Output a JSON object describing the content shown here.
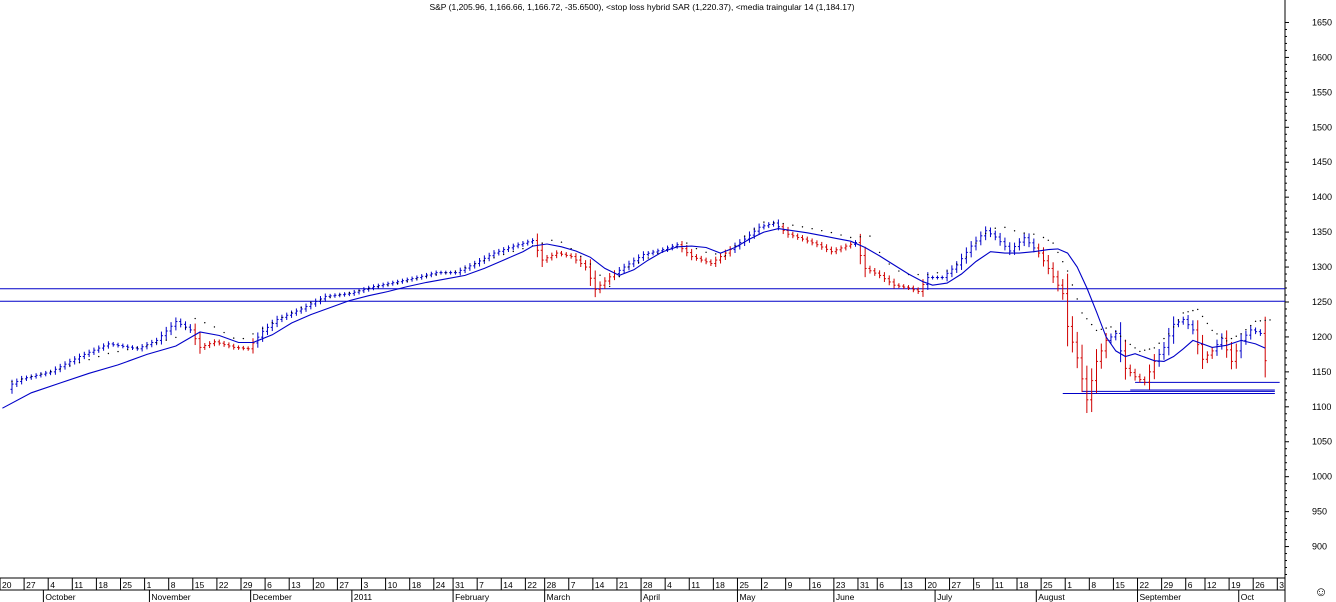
{
  "chart_data": {
    "type": "bar",
    "title": "S&P (1,205.96, 1,166.66, 1,166.72, -35.6500), <stop loss hybrid SAR (1,220.37), <media traingular 14 (1,184.17)",
    "y_axis": {
      "ylim": [
        855,
        1665
      ],
      "ticks": [
        1650,
        1600,
        1550,
        1500,
        1450,
        1400,
        1350,
        1300,
        1250,
        1200,
        1150,
        1100,
        1050,
        1000,
        950,
        900
      ],
      "tick_labels": [
        "1650",
        "1600",
        "1550",
        "1500",
        "1450",
        "1400",
        "1350",
        "1300",
        "1250",
        "1200",
        "1150",
        "1100",
        "1050",
        "1000",
        "950",
        "900"
      ],
      "position": "right"
    },
    "x_axis": {
      "day_labels": [
        "20",
        "27",
        "4",
        "11",
        "18",
        "25",
        "1",
        "8",
        "15",
        "22",
        "29",
        "6",
        "13",
        "20",
        "27",
        "3",
        "10",
        "18",
        "24",
        "31",
        "7",
        "14",
        "22",
        "28",
        "7",
        "14",
        "21",
        "28",
        "4",
        "11",
        "18",
        "25",
        "2",
        "9",
        "16",
        "23",
        "31",
        "6",
        "13",
        "20",
        "27",
        "5",
        "11",
        "18",
        "25",
        "1",
        "8",
        "15",
        "22",
        "29",
        "6",
        "12",
        "19",
        "26",
        "3"
      ],
      "day_index": [
        0,
        5,
        10,
        15,
        20,
        25,
        30,
        35,
        40,
        45,
        50,
        55,
        60,
        65,
        70,
        75,
        80,
        85,
        90,
        94,
        99,
        104,
        109,
        113,
        118,
        123,
        128,
        133,
        138,
        143,
        148,
        153,
        158,
        163,
        168,
        173,
        178,
        182,
        187,
        192,
        197,
        202,
        206,
        211,
        216,
        221,
        226,
        231,
        236,
        241,
        246,
        250,
        255,
        260,
        265
      ],
      "month_labels": [
        "October",
        "November",
        "December",
        "2011",
        "February",
        "March",
        "April",
        "May",
        "June",
        "July",
        "August",
        "September",
        "Oct"
      ],
      "month_index": [
        9,
        31,
        52,
        73,
        94,
        113,
        133,
        153,
        173,
        194,
        215,
        236,
        257
      ],
      "start_index": -2,
      "end_index": 268
    },
    "horizontal_lines": [
      1269,
      1251
    ],
    "support_lines": [
      {
        "x_start": 218,
        "x_end": 262,
        "y": 1119
      },
      {
        "x_start": 222,
        "x_end": 262,
        "y": 1122
      },
      {
        "x_start": 233,
        "x_end": 263,
        "y": 1135
      },
      {
        "x_start": 232,
        "x_end": 262,
        "y": 1124
      }
    ],
    "series": [
      {
        "name": "S&P",
        "kind": "ohlc_close",
        "points": [
          [
            -2,
            1125
          ],
          [
            2,
            1140
          ],
          [
            8,
            1150
          ],
          [
            14,
            1172
          ],
          [
            20,
            1190
          ],
          [
            26,
            1183
          ],
          [
            30,
            1195
          ],
          [
            34,
            1222
          ],
          [
            37,
            1210
          ],
          [
            39,
            1185
          ],
          [
            42,
            1193
          ],
          [
            46,
            1185
          ],
          [
            49,
            1183
          ],
          [
            52,
            1208
          ],
          [
            55,
            1225
          ],
          [
            60,
            1240
          ],
          [
            65,
            1258
          ],
          [
            70,
            1262
          ],
          [
            75,
            1272
          ],
          [
            80,
            1279
          ],
          [
            84,
            1285
          ],
          [
            88,
            1292
          ],
          [
            92,
            1292
          ],
          [
            96,
            1305
          ],
          [
            100,
            1320
          ],
          [
            104,
            1330
          ],
          [
            108,
            1338
          ],
          [
            110,
            1310
          ],
          [
            113,
            1320
          ],
          [
            116,
            1315
          ],
          [
            119,
            1300
          ],
          [
            121,
            1268
          ],
          [
            124,
            1286
          ],
          [
            127,
            1300
          ],
          [
            131,
            1318
          ],
          [
            135,
            1325
          ],
          [
            138,
            1332
          ],
          [
            141,
            1315
          ],
          [
            145,
            1305
          ],
          [
            148,
            1320
          ],
          [
            152,
            1340
          ],
          [
            155,
            1357
          ],
          [
            158,
            1363
          ],
          [
            161,
            1347
          ],
          [
            164,
            1340
          ],
          [
            167,
            1332
          ],
          [
            170,
            1322
          ],
          [
            173,
            1330
          ],
          [
            175,
            1335
          ],
          [
            177,
            1298
          ],
          [
            180,
            1288
          ],
          [
            183,
            1274
          ],
          [
            186,
            1270
          ],
          [
            188,
            1265
          ],
          [
            190,
            1285
          ],
          [
            193,
            1285
          ],
          [
            196,
            1303
          ],
          [
            199,
            1330
          ],
          [
            202,
            1352
          ],
          [
            204,
            1343
          ],
          [
            207,
            1323
          ],
          [
            210,
            1342
          ],
          [
            213,
            1320
          ],
          [
            215,
            1298
          ],
          [
            218,
            1262
          ],
          [
            219,
            1215
          ],
          [
            221,
            1170
          ],
          [
            223,
            1110
          ],
          [
            225,
            1165
          ],
          [
            227,
            1195
          ],
          [
            229,
            1205
          ],
          [
            231,
            1155
          ],
          [
            233,
            1143
          ],
          [
            235,
            1135
          ],
          [
            237,
            1165
          ],
          [
            239,
            1185
          ],
          [
            241,
            1218
          ],
          [
            243,
            1225
          ],
          [
            245,
            1210
          ],
          [
            247,
            1168
          ],
          [
            249,
            1180
          ],
          [
            251,
            1198
          ],
          [
            253,
            1165
          ],
          [
            255,
            1195
          ],
          [
            257,
            1210
          ],
          [
            259,
            1205
          ],
          [
            260,
            1166
          ]
        ]
      },
      {
        "name": "stop loss hybrid SAR",
        "kind": "dots",
        "points": [
          [
            -2,
            1128
          ],
          [
            10,
            1150
          ],
          [
            20,
            1172
          ],
          [
            28,
            1183
          ],
          [
            34,
            1195
          ],
          [
            38,
            1222
          ],
          [
            42,
            1210
          ],
          [
            47,
            1190
          ],
          [
            50,
            1200
          ],
          [
            55,
            1220
          ],
          [
            62,
            1245
          ],
          [
            68,
            1256
          ],
          [
            74,
            1265
          ],
          [
            80,
            1272
          ],
          [
            86,
            1282
          ],
          [
            92,
            1290
          ],
          [
            98,
            1305
          ],
          [
            104,
            1318
          ],
          [
            110,
            1330
          ],
          [
            113,
            1336
          ],
          [
            116,
            1322
          ],
          [
            120,
            1300
          ],
          [
            124,
            1268
          ],
          [
            128,
            1296
          ],
          [
            134,
            1315
          ],
          [
            138,
            1325
          ],
          [
            140,
            1330
          ],
          [
            143,
            1318
          ],
          [
            148,
            1312
          ],
          [
            152,
            1340
          ],
          [
            156,
            1360
          ],
          [
            160,
            1358
          ],
          [
            165,
            1352
          ],
          [
            170,
            1345
          ],
          [
            174,
            1338
          ],
          [
            178,
            1340
          ],
          [
            181,
            1305
          ],
          [
            185,
            1285
          ],
          [
            190,
            1285
          ],
          [
            194,
            1290
          ],
          [
            198,
            1310
          ],
          [
            201,
            1340
          ],
          [
            205,
            1355
          ],
          [
            209,
            1345
          ],
          [
            213,
            1342
          ],
          [
            216,
            1330
          ],
          [
            219,
            1290
          ],
          [
            222,
            1230
          ],
          [
            225,
            1205
          ],
          [
            228,
            1210
          ],
          [
            231,
            1190
          ],
          [
            234,
            1175
          ],
          [
            237,
            1180
          ],
          [
            240,
            1200
          ],
          [
            243,
            1230
          ],
          [
            246,
            1235
          ],
          [
            249,
            1205
          ],
          [
            252,
            1190
          ],
          [
            255,
            1200
          ],
          [
            258,
            1218
          ],
          [
            261,
            1220
          ]
        ]
      },
      {
        "name": "media traingular 14",
        "kind": "line",
        "points": [
          [
            -2,
            1098
          ],
          [
            4,
            1120
          ],
          [
            10,
            1134
          ],
          [
            16,
            1148
          ],
          [
            22,
            1160
          ],
          [
            28,
            1175
          ],
          [
            34,
            1187
          ],
          [
            39,
            1207
          ],
          [
            43,
            1202
          ],
          [
            47,
            1192
          ],
          [
            50,
            1192
          ],
          [
            54,
            1203
          ],
          [
            58,
            1220
          ],
          [
            62,
            1232
          ],
          [
            66,
            1242
          ],
          [
            70,
            1252
          ],
          [
            74,
            1259
          ],
          [
            78,
            1265
          ],
          [
            82,
            1272
          ],
          [
            86,
            1278
          ],
          [
            90,
            1283
          ],
          [
            94,
            1288
          ],
          [
            98,
            1298
          ],
          [
            102,
            1310
          ],
          [
            106,
            1322
          ],
          [
            108,
            1330
          ],
          [
            111,
            1333
          ],
          [
            114,
            1329
          ],
          [
            117,
            1323
          ],
          [
            120,
            1314
          ],
          [
            123,
            1298
          ],
          [
            126,
            1288
          ],
          [
            129,
            1296
          ],
          [
            132,
            1310
          ],
          [
            135,
            1322
          ],
          [
            138,
            1329
          ],
          [
            141,
            1330
          ],
          [
            144,
            1328
          ],
          [
            147,
            1320
          ],
          [
            150,
            1328
          ],
          [
            153,
            1340
          ],
          [
            156,
            1350
          ],
          [
            159,
            1355
          ],
          [
            162,
            1352
          ],
          [
            165,
            1349
          ],
          [
            168,
            1345
          ],
          [
            171,
            1341
          ],
          [
            174,
            1337
          ],
          [
            177,
            1328
          ],
          [
            180,
            1316
          ],
          [
            183,
            1303
          ],
          [
            186,
            1290
          ],
          [
            189,
            1279
          ],
          [
            191,
            1274
          ],
          [
            194,
            1277
          ],
          [
            197,
            1290
          ],
          [
            200,
            1308
          ],
          [
            203,
            1322
          ],
          [
            206,
            1320
          ],
          [
            209,
            1320
          ],
          [
            212,
            1322
          ],
          [
            215,
            1325
          ],
          [
            217,
            1326
          ],
          [
            219,
            1320
          ],
          [
            221,
            1300
          ],
          [
            223,
            1270
          ],
          [
            225,
            1236
          ],
          [
            227,
            1200
          ],
          [
            229,
            1180
          ],
          [
            231,
            1172
          ],
          [
            233,
            1176
          ],
          [
            235,
            1171
          ],
          [
            237,
            1166
          ],
          [
            239,
            1165
          ],
          [
            241,
            1172
          ],
          [
            243,
            1183
          ],
          [
            245,
            1195
          ],
          [
            247,
            1190
          ],
          [
            249,
            1185
          ],
          [
            252,
            1188
          ],
          [
            255,
            1195
          ],
          [
            258,
            1190
          ],
          [
            260,
            1184
          ]
        ]
      }
    ]
  }
}
